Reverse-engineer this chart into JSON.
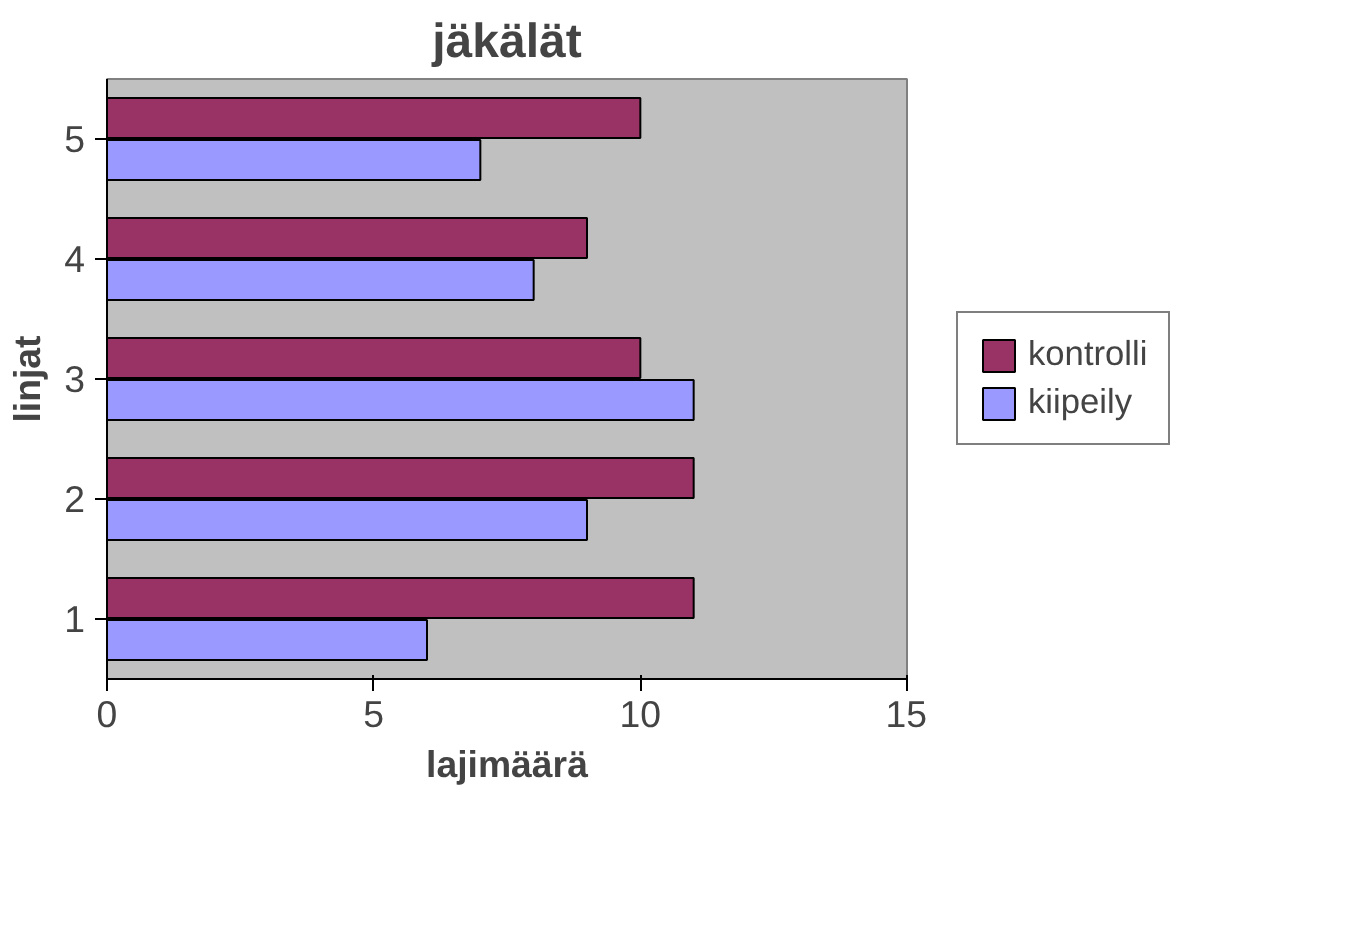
{
  "chart_data": {
    "type": "bar",
    "orientation": "horizontal",
    "title": "jäkälät",
    "xlabel": "lajimäärä",
    "ylabel": "linjat",
    "categories": [
      "5",
      "4",
      "3",
      "2",
      "1"
    ],
    "series": [
      {
        "name": "kontrolli",
        "color": "#993366",
        "values": [
          10,
          9,
          10,
          11,
          11
        ]
      },
      {
        "name": "kiipeily",
        "color": "#9999ff",
        "values": [
          7,
          8,
          11,
          9,
          6
        ]
      }
    ],
    "xlim": [
      0,
      15
    ],
    "xticks": [
      0,
      5,
      10,
      15
    ],
    "grid": false,
    "legend": "right"
  }
}
